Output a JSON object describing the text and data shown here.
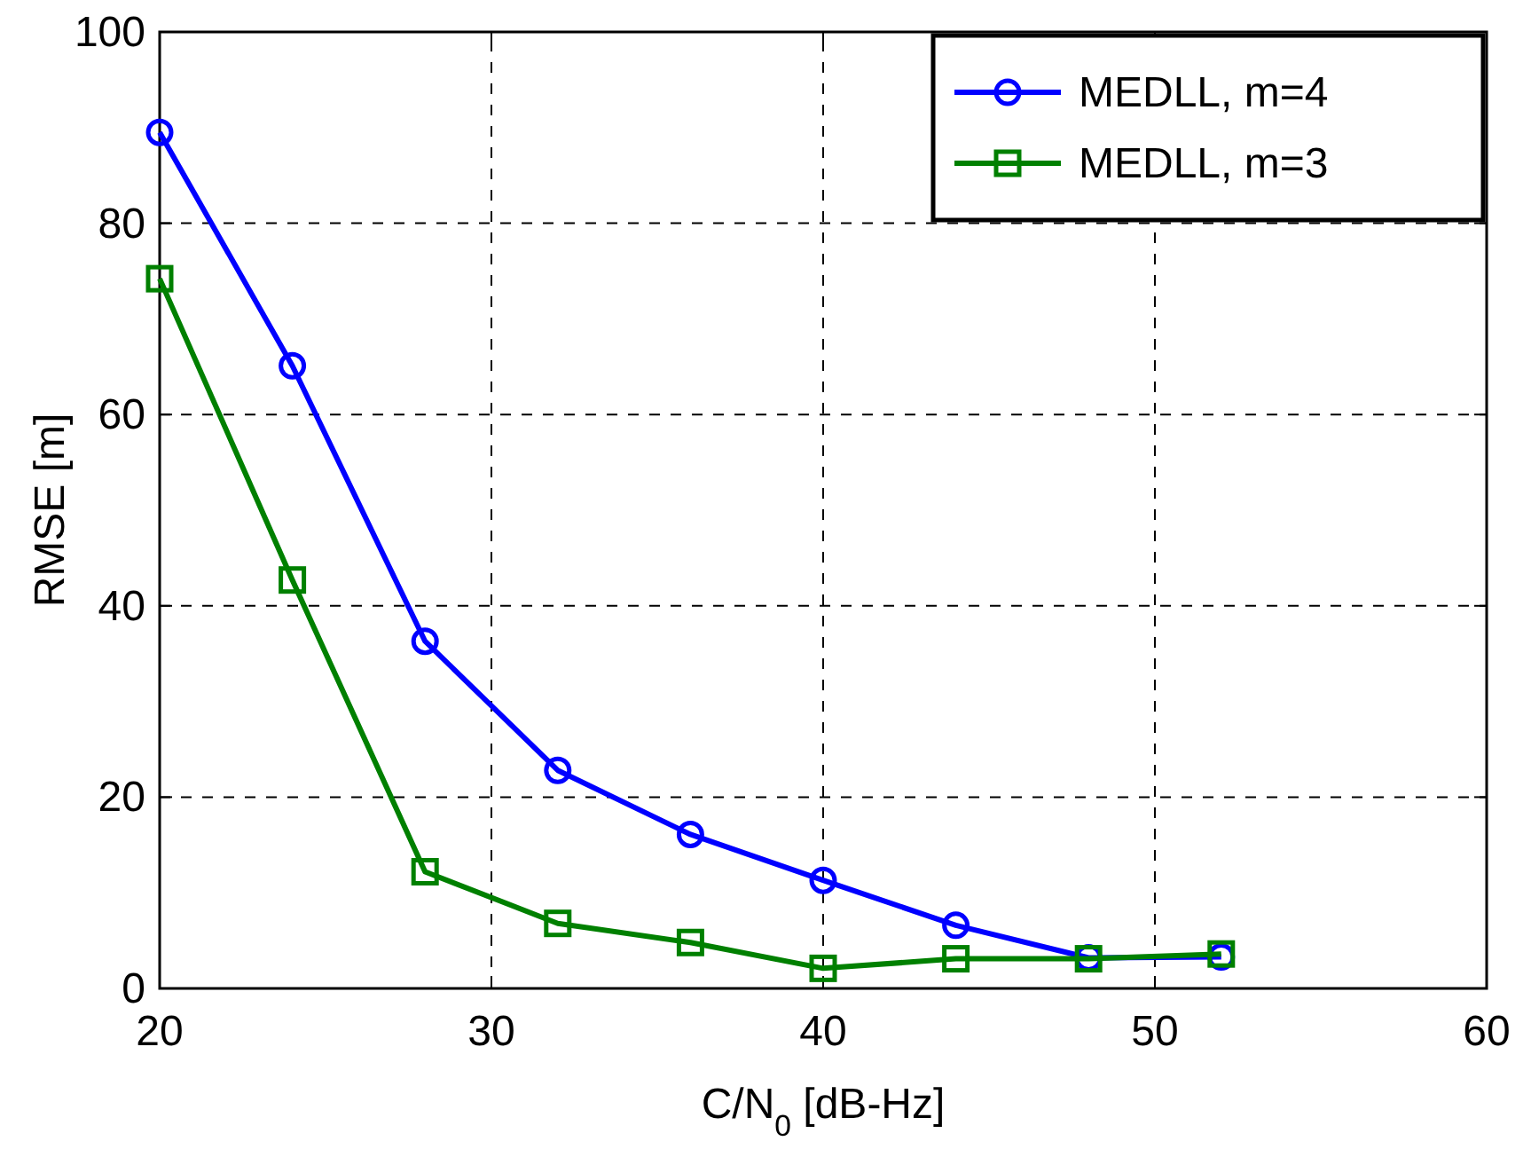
{
  "chart_data": {
    "type": "line",
    "xlabel": "C/N$_{0}$ [dB-Hz]",
    "ylabel": "RMSE [m]",
    "x": [
      20,
      24,
      28,
      32,
      36,
      40,
      44,
      48,
      52
    ],
    "series": [
      {
        "name": "MEDLL, m=4",
        "color": "#0000ff",
        "marker": "circle",
        "values": [
          89.5,
          65.1,
          36.3,
          22.8,
          16.1,
          11.3,
          6.6,
          3.2,
          3.3
        ]
      },
      {
        "name": "MEDLL, m=3",
        "color": "#008000",
        "marker": "square",
        "values": [
          74.2,
          42.7,
          12.2,
          6.8,
          4.8,
          2.1,
          3.1,
          3.1,
          3.6
        ]
      }
    ],
    "xlim": [
      20,
      60
    ],
    "xticks": [
      20,
      30,
      40,
      50,
      60
    ],
    "ylim": [
      0,
      100
    ],
    "yticks": [
      0,
      20,
      40,
      60,
      80,
      100
    ],
    "grid": true,
    "legend": "top right",
    "line_style": "solid"
  }
}
